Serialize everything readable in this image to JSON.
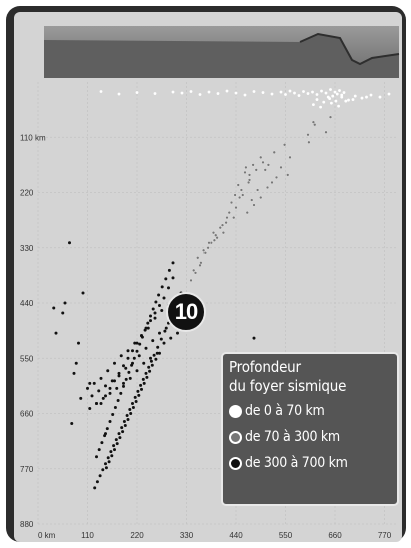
{
  "chart_data": {
    "type": "scatter",
    "title": "",
    "xlabel": "",
    "ylabel": "",
    "x_unit_label": "0 km",
    "y_unit_label": "110 km",
    "x_ticks": [
      0,
      110,
      220,
      330,
      440,
      550,
      660,
      770
    ],
    "y_ticks": [
      110,
      220,
      330,
      440,
      550,
      660,
      770,
      880
    ],
    "x_tick_labels": [
      "0 km",
      "110",
      "220",
      "330",
      "440",
      "550",
      "660",
      "770"
    ],
    "y_tick_labels": [
      "110 km",
      "220",
      "330",
      "440",
      "550",
      "660",
      "770",
      "880"
    ],
    "xlim": [
      0,
      800
    ],
    "ylim": [
      0,
      880
    ],
    "y_inverted": true,
    "grid": true,
    "badge_label": "10",
    "legend": {
      "title_line1": "Profondeur",
      "title_line2": "du foyer sismique",
      "entries": [
        {
          "label": "de 0 à 70 km",
          "color": "#ffffff"
        },
        {
          "label": "de 70 à 300 km",
          "color": "#777777"
        },
        {
          "label": "de 300 à 700 km",
          "color": "#111111"
        }
      ],
      "placement": "bottom-right"
    },
    "series": [
      {
        "name": "de 0 à 70 km",
        "color": "#ffffff",
        "x": [
          610,
          620,
          630,
          640,
          645,
          650,
          655,
          660,
          665,
          670,
          675,
          680,
          600,
          590,
          580,
          570,
          560,
          550,
          540,
          520,
          500,
          480,
          460,
          440,
          420,
          400,
          380,
          360,
          340,
          320,
          300,
          260,
          220,
          180,
          140,
          620,
          635,
          648,
          662,
          675,
          690,
          705,
          720,
          740,
          760,
          780,
          612,
          628,
          652,
          668,
          684,
          700,
          730
        ],
        "y": [
          20,
          25,
          18,
          22,
          30,
          15,
          28,
          20,
          24,
          17,
          26,
          21,
          23,
          19,
          27,
          22,
          18,
          25,
          20,
          24,
          21,
          19,
          26,
          22,
          18,
          23,
          20,
          25,
          19,
          22,
          20,
          23,
          21,
          24,
          19,
          35,
          40,
          33,
          38,
          30,
          36,
          28,
          32,
          26,
          30,
          24,
          45,
          50,
          42,
          48,
          38,
          35,
          30
        ]
      },
      {
        "name": "de 70 à 300 km",
        "color": "#777777",
        "x": [
          650,
          615,
          640,
          600,
          560,
          540,
          555,
          530,
          520,
          510,
          500,
          495,
          485,
          480,
          470,
          465,
          460,
          452,
          448,
          440,
          435,
          430,
          425,
          418,
          412,
          405,
          398,
          390,
          385,
          378,
          370,
          362,
          355,
          350,
          340,
          495,
          478,
          468,
          455,
          445,
          438,
          470,
          488,
          505,
          420,
          410,
          395,
          380,
          368,
          360,
          346,
          372,
          392,
          525,
          548,
          462,
          475,
          512,
          612,
          602
        ],
        "y": [
          70,
          85,
          100,
          105,
          150,
          170,
          185,
          190,
          200,
          210,
          160,
          230,
          175,
          245,
          195,
          260,
          180,
          215,
          230,
          250,
          270,
          240,
          260,
          280,
          300,
          290,
          310,
          300,
          320,
          330,
          340,
          360,
          350,
          380,
          395,
          150,
          165,
          200,
          225,
          205,
          225,
          185,
          215,
          175,
          270,
          285,
          305,
          320,
          335,
          365,
          375,
          340,
          315,
          140,
          125,
          170,
          235,
          165,
          80,
          120
        ]
      },
      {
        "name": "de 300 à 700 km",
        "color": "#111111",
        "x": [
          340,
          330,
          325,
          318,
          310,
          305,
          300,
          295,
          290,
          285,
          280,
          275,
          270,
          265,
          260,
          255,
          250,
          245,
          240,
          235,
          230,
          225,
          220,
          215,
          210,
          205,
          200,
          195,
          190,
          185,
          180,
          175,
          170,
          165,
          160,
          155,
          150,
          145,
          140,
          135,
          130,
          125,
          120,
          115,
          110,
          300,
          290,
          280,
          270,
          260,
          250,
          240,
          230,
          220,
          210,
          200,
          190,
          180,
          170,
          160,
          150,
          140,
          300,
          292,
          284,
          276,
          268,
          262,
          256,
          250,
          244,
          238,
          232,
          226,
          220,
          214,
          208,
          202,
          196,
          190,
          184,
          178,
          172,
          166,
          160,
          154,
          148,
          142,
          136,
          130,
          290,
          282,
          274,
          266,
          258,
          252,
          246,
          240,
          234,
          228,
          222,
          216,
          210,
          204,
          198,
          192,
          186,
          180,
          174,
          168,
          162,
          156,
          150,
          144,
          138,
          132,
          126,
          270,
          262,
          254,
          248,
          242,
          236,
          230,
          224,
          218,
          212,
          206,
          200,
          194,
          188,
          182,
          176,
          170,
          164,
          158,
          152,
          70,
          60,
          35,
          55,
          40,
          100,
          90,
          85,
          75,
          115,
          130,
          150,
          480,
          95,
          80
        ],
        "y": [
          465,
          440,
          480,
          420,
          500,
          430,
          470,
          510,
          445,
          490,
          520,
          455,
          500,
          540,
          470,
          515,
          550,
          490,
          530,
          560,
          505,
          545,
          575,
          520,
          560,
          590,
          535,
          570,
          600,
          545,
          585,
          610,
          560,
          595,
          620,
          575,
          605,
          630,
          590,
          615,
          640,
          600,
          625,
          650,
          610,
          390,
          410,
          430,
          445,
          460,
          475,
          490,
          505,
          520,
          535,
          550,
          565,
          580,
          595,
          610,
          625,
          640,
          360,
          375,
          392,
          408,
          424,
          438,
          452,
          466,
          480,
          494,
          508,
          522,
          536,
          550,
          564,
          578,
          592,
          606,
          620,
          634,
          648,
          662,
          676,
          690,
          704,
          718,
          732,
          746,
          480,
          496,
          512,
          528,
          544,
          556,
          568,
          580,
          592,
          604,
          616,
          628,
          640,
          652,
          664,
          676,
          688,
          700,
          712,
          724,
          736,
          748,
          760,
          772,
          784,
          796,
          808,
          540,
          552,
          564,
          576,
          588,
          600,
          612,
          624,
          636,
          648,
          660,
          672,
          684,
          696,
          708,
          720,
          732,
          744,
          756,
          768,
          320,
          440,
          450,
          460,
          500,
          420,
          520,
          560,
          680,
          600,
          640,
          700,
          510,
          630,
          580
        ]
      }
    ],
    "header_strip": {
      "color_top": "#9a9a9a",
      "color_bottom": "#6a6a6a"
    }
  }
}
